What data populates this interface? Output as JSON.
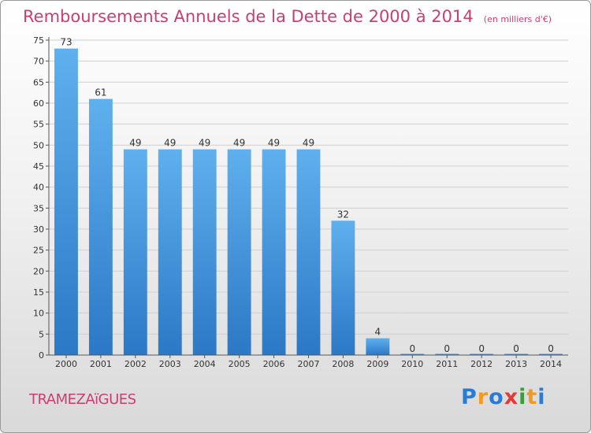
{
  "title": "Remboursements Annuels de la Dette de 2000 à 2014",
  "unit_note": "(en milliers d'€)",
  "commune": "TRAMEZAïGUES",
  "logo": {
    "text": "Proxiti",
    "colors": [
      "#2a7bd4",
      "#f29a1f",
      "#2a7bd4",
      "#e23a3a",
      "#3a9e3a",
      "#f29a1f",
      "#2a7bd4"
    ]
  },
  "colors": {
    "bar": "#3d8fd8",
    "title": "#cc3d73",
    "grid": "#d0d0d0"
  },
  "chart_data": {
    "type": "bar",
    "categories": [
      "2000",
      "2001",
      "2002",
      "2003",
      "2004",
      "2005",
      "2006",
      "2007",
      "2008",
      "2009",
      "2010",
      "2011",
      "2012",
      "2013",
      "2014"
    ],
    "values": [
      73,
      61,
      49,
      49,
      49,
      49,
      49,
      49,
      32,
      4,
      0,
      0,
      0,
      0,
      0
    ],
    "ylim": [
      0,
      75
    ],
    "ytick_step": 5,
    "grid": true
  }
}
